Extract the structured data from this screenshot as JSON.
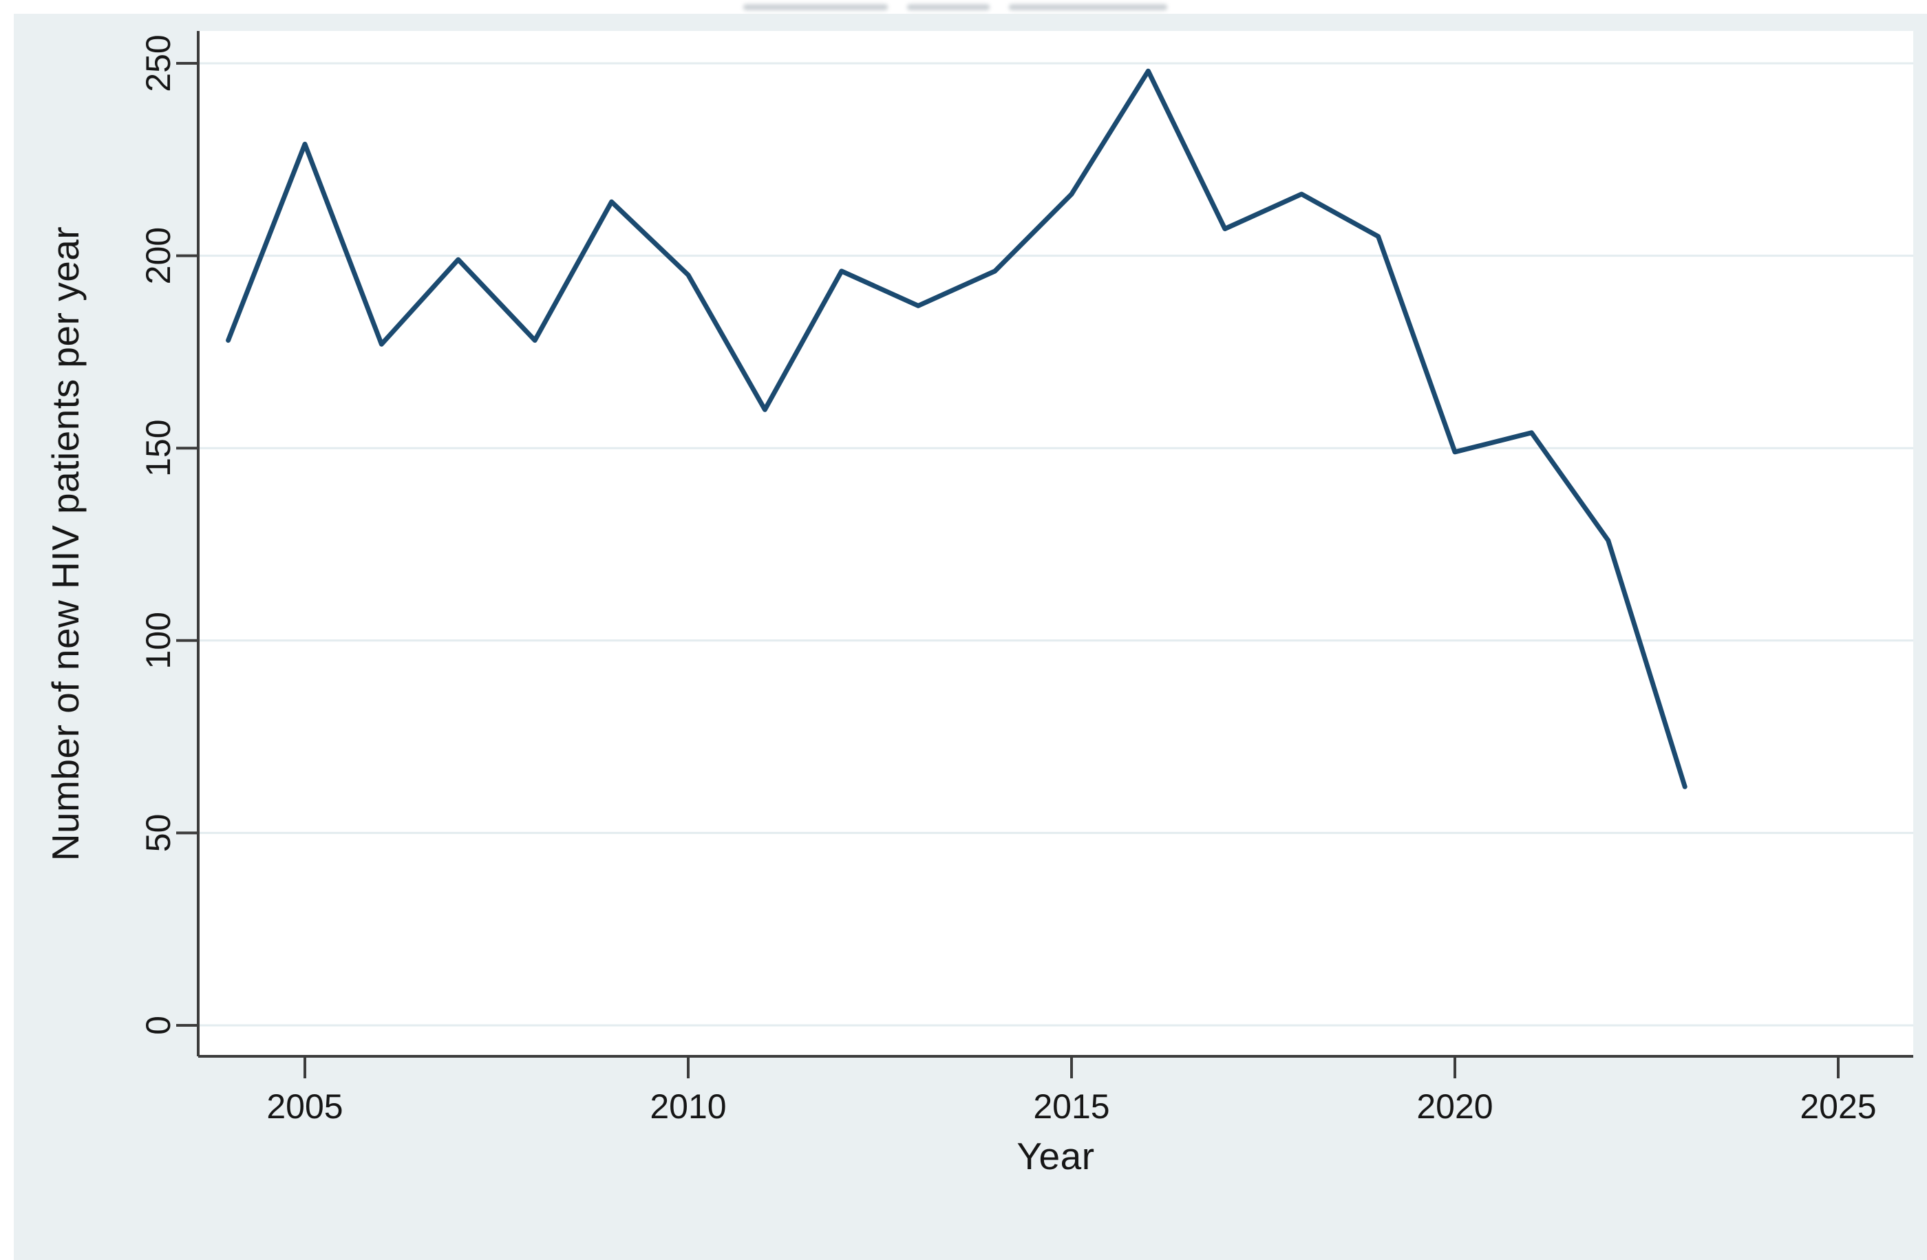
{
  "figure": {
    "background_color": "#eaf0f2",
    "plot_background_color": "#ffffff",
    "y_axis_title": "Number of new HIV patients per year",
    "x_axis_title": "Year"
  },
  "chart_data": {
    "type": "line",
    "title": "",
    "xlabel": "Year",
    "ylabel": "Number of new HIV patients per year",
    "series": [
      {
        "name": "Number of new HIV patients per year",
        "x": [
          2004,
          2005,
          2006,
          2007,
          2008,
          2009,
          2010,
          2011,
          2012,
          2013,
          2014,
          2015,
          2016,
          2017,
          2018,
          2019,
          2020,
          2021,
          2022,
          2023
        ],
        "values": [
          178,
          229,
          177,
          199,
          178,
          214,
          195,
          160,
          196,
          187,
          196,
          216,
          248,
          207,
          216,
          205,
          149,
          154,
          126,
          62
        ]
      }
    ],
    "x_ticks": [
      2005,
      2010,
      2015,
      2020,
      2025
    ],
    "y_ticks": [
      0,
      50,
      100,
      150,
      200,
      250
    ],
    "xlim": [
      2003.6,
      2026
    ],
    "ylim": [
      0,
      257
    ],
    "grid": "horizontal",
    "legend_position": "none",
    "line_color": "#1b4a70",
    "grid_color": "#e3ecef",
    "axis_color": "#3c3c3c",
    "tick_label_color": "#161616"
  }
}
